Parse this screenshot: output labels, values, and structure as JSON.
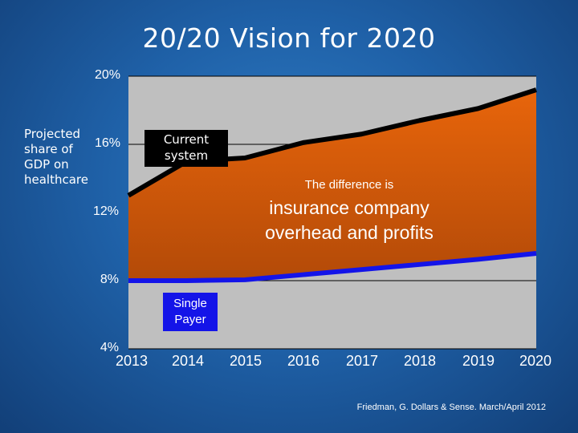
{
  "slide_title": "20/20 Vision for 2020",
  "source": "Friedman, G. Dollars & Sense. March/April 2012",
  "annotations": {
    "current_system": "Current system",
    "single_payer": "Single Payer",
    "difference_line1": "The difference is",
    "difference_line2": "insurance company overhead and profits"
  },
  "colors": {
    "background": "#1f61a8",
    "plot_background": "#bfbfbf",
    "difference_fill": "#d85a0a",
    "current_line": "#000000",
    "single_payer_line": "#1414e8"
  },
  "chart_data": {
    "type": "area",
    "title": "",
    "ylabel": "Projected share of GDP on healthcare",
    "xlabel": "",
    "x": [
      "2013",
      "2014",
      "2015",
      "2016",
      "2017",
      "2018",
      "2019",
      "2020"
    ],
    "y_tick_labels": [
      "20%",
      "16%",
      "12%",
      "8%",
      "4%"
    ],
    "ylim": [
      4,
      20
    ],
    "grid": true,
    "series": [
      {
        "name": "Current system",
        "values": [
          13.0,
          15.0,
          15.2,
          16.1,
          16.6,
          17.4,
          18.1,
          19.2
        ]
      },
      {
        "name": "Single Payer",
        "values": [
          8.0,
          8.0,
          8.05,
          8.35,
          8.65,
          8.95,
          9.25,
          9.6
        ]
      }
    ]
  }
}
